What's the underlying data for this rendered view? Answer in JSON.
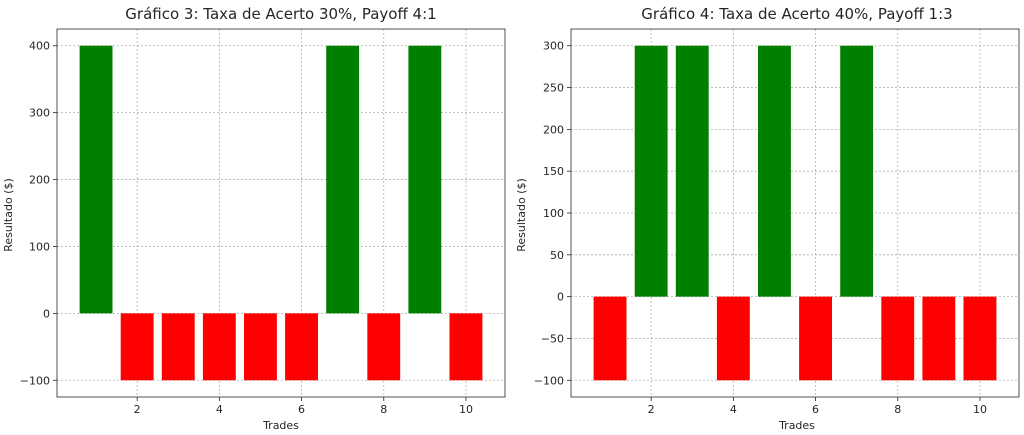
{
  "chart_data": [
    {
      "type": "bar",
      "title": "Gráfico 3: Taxa de Acerto 30%, Payoff 4:1",
      "xlabel": "Trades",
      "ylabel": "Resultado ($)",
      "x": [
        1,
        2,
        3,
        4,
        5,
        6,
        7,
        8,
        9,
        10
      ],
      "values": [
        400,
        -100,
        -100,
        -100,
        -100,
        -100,
        400,
        -100,
        400,
        -100
      ],
      "xticks": [
        2,
        4,
        6,
        8,
        10
      ],
      "yticks": [
        -100,
        0,
        100,
        200,
        300,
        400
      ],
      "ytick_labels": [
        "−100",
        "0",
        "100",
        "200",
        "300",
        "400"
      ],
      "ylim": [
        -125,
        425
      ],
      "xlim": [
        0.05,
        10.95
      ],
      "grid": true,
      "positive_color": "#008000",
      "negative_color": "#ff0000"
    },
    {
      "type": "bar",
      "title": "Gráfico 4: Taxa de Acerto 40%, Payoff 1:3",
      "xlabel": "Trades",
      "ylabel": "Resultado ($)",
      "x": [
        1,
        2,
        3,
        4,
        5,
        6,
        7,
        8,
        9,
        10
      ],
      "values": [
        -100,
        300,
        300,
        -100,
        300,
        -100,
        300,
        -100,
        -100,
        -100
      ],
      "xticks": [
        2,
        4,
        6,
        8,
        10
      ],
      "yticks": [
        -100,
        -50,
        0,
        50,
        100,
        150,
        200,
        250,
        300
      ],
      "ytick_labels": [
        "−100",
        "−50",
        "0",
        "50",
        "100",
        "150",
        "200",
        "250",
        "300"
      ],
      "ylim": [
        -120,
        320
      ],
      "xlim": [
        0.05,
        10.95
      ],
      "grid": true,
      "positive_color": "#008000",
      "negative_color": "#ff0000"
    }
  ]
}
